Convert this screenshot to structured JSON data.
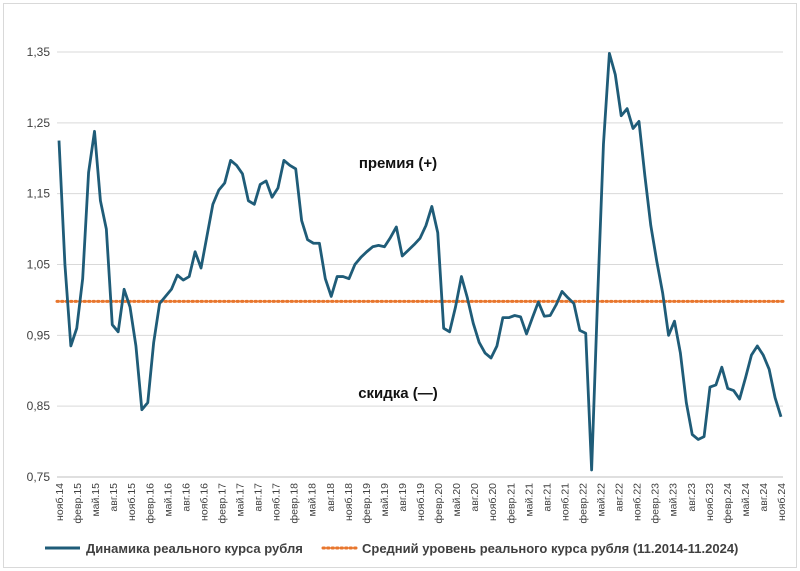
{
  "chart_data": {
    "type": "line",
    "ylim": [
      0.75,
      1.35
    ],
    "yticks": [
      "0,75",
      "0,85",
      "0,95",
      "1,05",
      "1,15",
      "1,25",
      "1,35"
    ],
    "ytick_values": [
      0.75,
      0.85,
      0.95,
      1.05,
      1.15,
      1.25,
      1.35
    ],
    "xtick_labels": [
      "нояб.14",
      "февр.15",
      "май.15",
      "авг.15",
      "нояб.15",
      "февр.16",
      "май.16",
      "авг.16",
      "нояб.16",
      "февр.17",
      "май.17",
      "авг.17",
      "нояб.17",
      "февр.18",
      "май.18",
      "авг.18",
      "нояб.18",
      "февр.19",
      "май.19",
      "авг.19",
      "нояб.19",
      "февр.20",
      "май.20",
      "авг.20",
      "нояб.20",
      "февр.21",
      "май.21",
      "авг.21",
      "нояб.21",
      "февр.22",
      "май.22",
      "авг.22",
      "нояб.22",
      "февр.23",
      "май.23",
      "авг.23",
      "нояб.23",
      "февр.24",
      "май.24",
      "авг.24",
      "нояб.24"
    ],
    "grid": "horizontal",
    "legend_position": "bottom",
    "series": [
      {
        "name": "Динамика реального курса рубля",
        "color": "#1f5c78",
        "style": "solid",
        "values": [
          1.225,
          1.05,
          0.935,
          0.96,
          1.03,
          1.18,
          1.238,
          1.14,
          1.1,
          0.965,
          0.955,
          1.015,
          0.99,
          0.935,
          0.845,
          0.855,
          0.94,
          0.995,
          1.005,
          1.015,
          1.035,
          1.028,
          1.033,
          1.068,
          1.045,
          1.09,
          1.135,
          1.155,
          1.165,
          1.197,
          1.19,
          1.178,
          1.14,
          1.135,
          1.163,
          1.168,
          1.145,
          1.158,
          1.197,
          1.19,
          1.185,
          1.112,
          1.085,
          1.08,
          1.08,
          1.03,
          1.005,
          1.033,
          1.033,
          1.03,
          1.05,
          1.06,
          1.068,
          1.075,
          1.077,
          1.075,
          1.088,
          1.103,
          1.062,
          1.07,
          1.078,
          1.087,
          1.105,
          1.132,
          1.095,
          0.96,
          0.955,
          0.99,
          1.033,
          1.003,
          0.967,
          0.94,
          0.925,
          0.918,
          0.935,
          0.975,
          0.975,
          0.978,
          0.976,
          0.952,
          0.975,
          0.997,
          0.977,
          0.978,
          0.993,
          1.012,
          1.003,
          0.995,
          0.957,
          0.953,
          0.76,
          1.0,
          1.22,
          1.348,
          1.318,
          1.26,
          1.27,
          1.242,
          1.252,
          1.175,
          1.105,
          1.055,
          1.01,
          0.95,
          0.97,
          0.925,
          0.855,
          0.81,
          0.803,
          0.807,
          0.877,
          0.88,
          0.905,
          0.875,
          0.872,
          0.86,
          0.89,
          0.922,
          0.935,
          0.922,
          0.902,
          0.862,
          0.835
        ]
      },
      {
        "name": "Средний уровень реального курса рубля (11.2014-11.2024)",
        "color": "#e8762d",
        "style": "dotted",
        "value": 0.998
      }
    ],
    "annotations": {
      "premium": "премия (+)",
      "discount": "скидка (—)"
    }
  }
}
